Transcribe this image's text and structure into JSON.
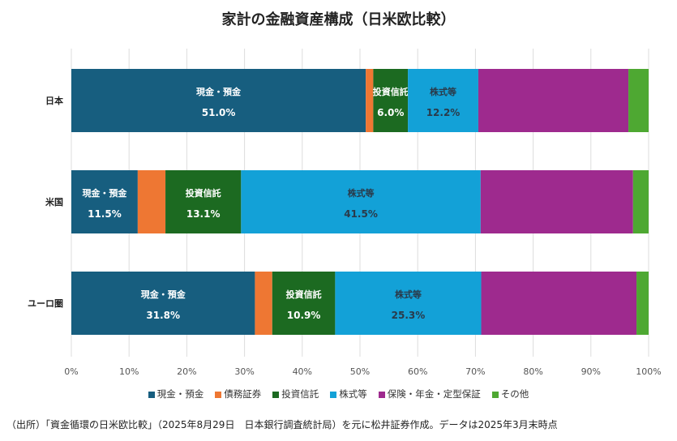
{
  "chart_data": {
    "type": "bar",
    "orientation": "horizontal-stacked",
    "title": "家計の金融資産構成（日米欧比較）",
    "categories": [
      "日本",
      "米国",
      "ユーロ圏"
    ],
    "xlim": [
      0,
      100
    ],
    "xticks": [
      "0%",
      "10%",
      "20%",
      "30%",
      "40%",
      "50%",
      "60%",
      "70%",
      "80%",
      "90%",
      "100%"
    ],
    "grid": true,
    "legend_position": "bottom",
    "series": [
      {
        "name": "現金・預金",
        "color": "#175E7F",
        "values": [
          51.0,
          11.5,
          31.8
        ],
        "labels": [
          "51.0%",
          "11.5%",
          "31.8%"
        ],
        "label_color": "#ffffff"
      },
      {
        "name": "債務証券",
        "color": "#EE7733",
        "values": [
          1.3,
          4.8,
          3.0
        ],
        "labels": [
          "",
          "",
          ""
        ],
        "label_color": "#ffffff"
      },
      {
        "name": "投資信託",
        "color": "#1C6A21",
        "values": [
          6.0,
          13.1,
          10.9
        ],
        "labels": [
          "6.0%",
          "13.1%",
          "10.9%"
        ],
        "label_color": "#ffffff"
      },
      {
        "name": "株式等",
        "color": "#13A1D7",
        "values": [
          12.2,
          41.5,
          25.3
        ],
        "labels": [
          "12.2%",
          "41.5%",
          "25.3%"
        ],
        "label_color": "#2a3a4a"
      },
      {
        "name": "保険・年金・定型保証",
        "color": "#9E2A8E",
        "values": [
          26.0,
          26.4,
          26.9
        ],
        "labels": [
          "",
          "",
          ""
        ],
        "label_color": "#ffffff"
      },
      {
        "name": "その他",
        "color": "#4EA832",
        "values": [
          3.5,
          2.7,
          2.1
        ],
        "labels": [
          "",
          "",
          ""
        ],
        "label_color": "#ffffff"
      }
    ]
  },
  "source": "（出所）「資金循環の日米欧比較」（2025年8月29日　日本銀行調査統計局）を元に松井証券作成。データは2025年3月末時点"
}
